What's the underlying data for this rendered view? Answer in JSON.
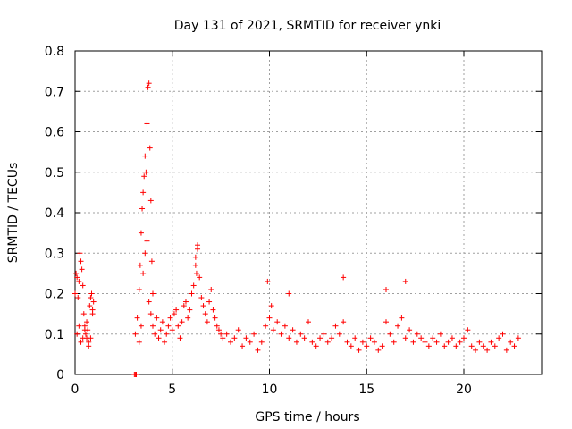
{
  "chart_data": {
    "type": "scatter",
    "title": "Day 131 of 2021, SRMTID for receiver ynki",
    "xlabel": "GPS time / hours",
    "ylabel": "SRMTID / TECUs",
    "xlim": [
      0,
      24
    ],
    "ylim": [
      0,
      0.8
    ],
    "xticks": [
      0,
      5,
      10,
      15,
      20
    ],
    "yticks": [
      0,
      0.1,
      0.2,
      0.3,
      0.4,
      0.5,
      0.6,
      0.7,
      0.8
    ],
    "xtick_labels": [
      "0",
      "5",
      "10",
      "15",
      "20"
    ],
    "ytick_labels": [
      "0",
      "0.1",
      "0.2",
      "0.3",
      "0.4",
      "0.5",
      "0.6",
      "0.7",
      "0.8"
    ],
    "grid": true,
    "marker": "+",
    "color": "#ff0000",
    "series": [
      {
        "name": "SRMTID",
        "x": [
          0.0,
          0.05,
          0.1,
          0.15,
          0.2,
          0.25,
          0.3,
          0.35,
          0.4,
          0.45,
          0.5,
          0.55,
          0.6,
          0.65,
          0.7,
          0.75,
          0.8,
          0.85,
          0.9,
          0.95,
          0.1,
          0.2,
          0.3,
          0.4,
          0.5,
          0.6,
          0.7,
          0.8,
          0.9,
          3.1,
          3.2,
          3.3,
          3.35,
          3.4,
          3.45,
          3.5,
          3.55,
          3.6,
          3.65,
          3.7,
          3.75,
          3.8,
          3.85,
          3.9,
          3.95,
          4.0,
          3.3,
          3.4,
          3.5,
          3.6,
          3.7,
          3.8,
          3.9,
          4.0,
          4.1,
          4.2,
          4.3,
          4.4,
          4.5,
          4.6,
          4.7,
          4.8,
          4.9,
          5.0,
          5.1,
          5.2,
          5.3,
          5.4,
          5.5,
          5.6,
          5.7,
          5.8,
          5.9,
          6.0,
          6.1,
          6.2,
          6.3,
          6.4,
          6.5,
          6.6,
          6.7,
          6.8,
          6.9,
          7.0,
          7.1,
          7.2,
          7.3,
          7.4,
          7.5,
          6.2,
          6.3,
          6.25,
          7.6,
          7.8,
          8.0,
          8.2,
          8.4,
          8.6,
          8.8,
          9.0,
          9.2,
          9.4,
          9.6,
          9.8,
          10.0,
          10.2,
          10.4,
          10.6,
          10.8,
          11.0,
          11.2,
          11.4,
          11.6,
          11.8,
          12.0,
          12.2,
          12.4,
          12.6,
          12.8,
          13.0,
          13.2,
          13.4,
          13.6,
          13.8,
          14.0,
          14.2,
          14.4,
          14.6,
          14.8,
          15.0,
          15.2,
          15.4,
          15.6,
          15.8,
          16.0,
          16.2,
          16.4,
          16.6,
          16.8,
          17.0,
          17.2,
          17.4,
          17.6,
          17.8,
          18.0,
          18.2,
          18.4,
          18.6,
          18.8,
          19.0,
          19.2,
          19.4,
          19.6,
          19.8,
          20.0,
          20.2,
          20.4,
          20.6,
          20.8,
          21.0,
          21.2,
          21.4,
          21.6,
          21.8,
          22.0,
          22.2,
          22.4,
          22.6,
          22.8,
          9.9,
          10.1,
          11.0,
          13.8,
          16.0,
          17.0,
          3.05,
          3.1,
          3.15
        ],
        "y": [
          0.2,
          0.25,
          0.24,
          0.19,
          0.23,
          0.3,
          0.28,
          0.26,
          0.22,
          0.15,
          0.12,
          0.1,
          0.09,
          0.11,
          0.08,
          0.17,
          0.19,
          0.2,
          0.16,
          0.18,
          0.1,
          0.12,
          0.08,
          0.09,
          0.11,
          0.13,
          0.07,
          0.09,
          0.15,
          0.1,
          0.14,
          0.21,
          0.27,
          0.35,
          0.41,
          0.45,
          0.49,
          0.54,
          0.5,
          0.62,
          0.71,
          0.72,
          0.56,
          0.43,
          0.28,
          0.2,
          0.08,
          0.12,
          0.25,
          0.3,
          0.33,
          0.18,
          0.15,
          0.12,
          0.1,
          0.14,
          0.09,
          0.11,
          0.13,
          0.08,
          0.1,
          0.12,
          0.14,
          0.11,
          0.15,
          0.16,
          0.12,
          0.09,
          0.13,
          0.17,
          0.18,
          0.14,
          0.16,
          0.2,
          0.22,
          0.27,
          0.31,
          0.24,
          0.19,
          0.17,
          0.15,
          0.13,
          0.18,
          0.21,
          0.16,
          0.14,
          0.12,
          0.11,
          0.1,
          0.29,
          0.32,
          0.25,
          0.09,
          0.1,
          0.08,
          0.09,
          0.11,
          0.07,
          0.09,
          0.08,
          0.1,
          0.06,
          0.08,
          0.12,
          0.14,
          0.11,
          0.13,
          0.1,
          0.12,
          0.09,
          0.11,
          0.08,
          0.1,
          0.09,
          0.13,
          0.08,
          0.07,
          0.09,
          0.1,
          0.08,
          0.09,
          0.12,
          0.1,
          0.13,
          0.08,
          0.07,
          0.09,
          0.06,
          0.08,
          0.07,
          0.09,
          0.08,
          0.06,
          0.07,
          0.13,
          0.1,
          0.08,
          0.12,
          0.14,
          0.09,
          0.11,
          0.08,
          0.1,
          0.09,
          0.08,
          0.07,
          0.09,
          0.08,
          0.1,
          0.07,
          0.08,
          0.09,
          0.07,
          0.08,
          0.09,
          0.11,
          0.07,
          0.06,
          0.08,
          0.07,
          0.06,
          0.08,
          0.07,
          0.09,
          0.1,
          0.06,
          0.08,
          0.07,
          0.09,
          0.23,
          0.17,
          0.2,
          0.24,
          0.21,
          0.23,
          0.0,
          0.0,
          0.0
        ]
      }
    ]
  }
}
